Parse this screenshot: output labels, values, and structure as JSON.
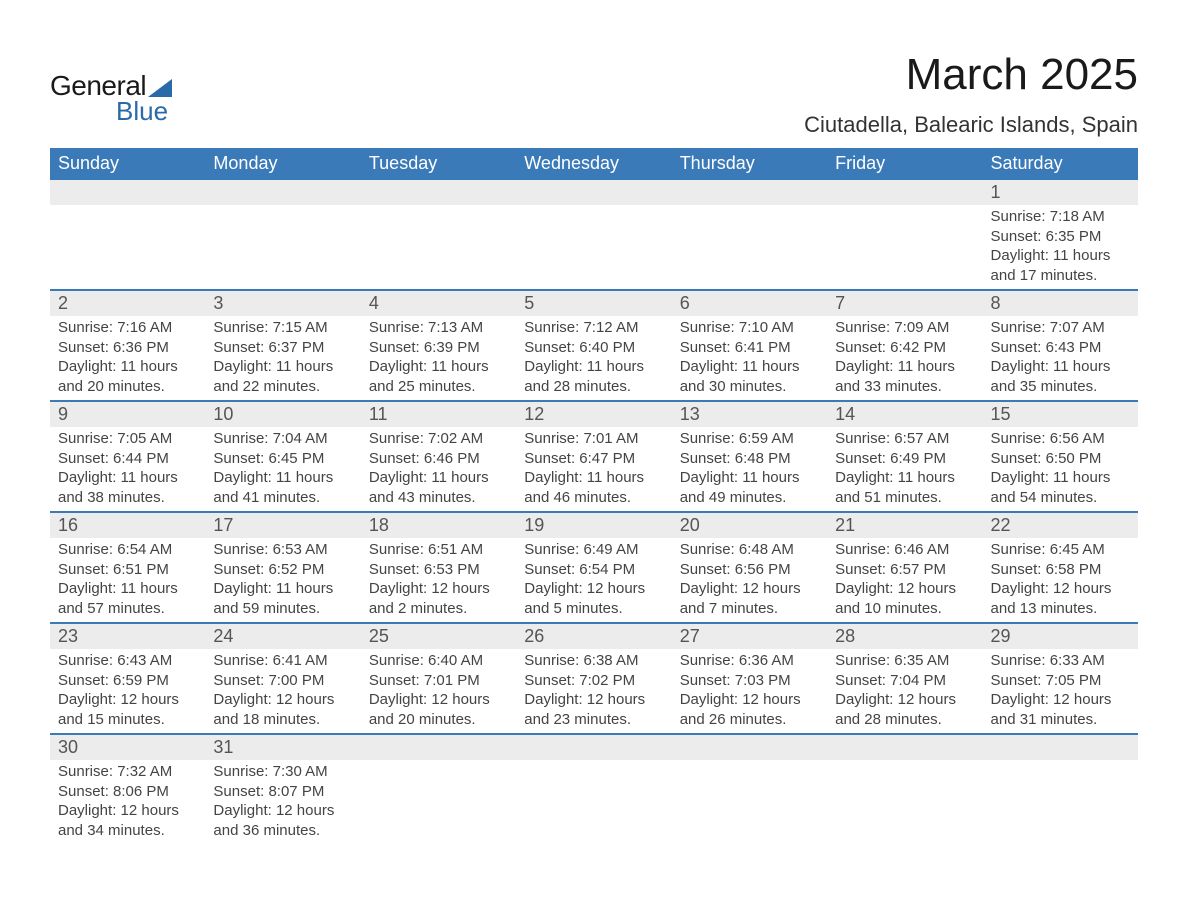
{
  "logo": {
    "text_left": "General",
    "text_right": "Blue"
  },
  "title": "March 2025",
  "location": "Ciutadella, Balearic Islands, Spain",
  "colors": {
    "header_bg": "#3a7ab8",
    "header_text": "#ffffff",
    "daynum_bg": "#ececec",
    "row_divider": "#3a7ab8",
    "brand_blue": "#2a6aa8",
    "body_text": "#444444"
  },
  "weekday_labels": [
    "Sunday",
    "Monday",
    "Tuesday",
    "Wednesday",
    "Thursday",
    "Friday",
    "Saturday"
  ],
  "weeks": [
    [
      {
        "empty": true
      },
      {
        "empty": true
      },
      {
        "empty": true
      },
      {
        "empty": true
      },
      {
        "empty": true
      },
      {
        "empty": true
      },
      {
        "num": "1",
        "sunrise": "Sunrise: 7:18 AM",
        "sunset": "Sunset: 6:35 PM",
        "day1": "Daylight: 11 hours",
        "day2": "and 17 minutes."
      }
    ],
    [
      {
        "num": "2",
        "sunrise": "Sunrise: 7:16 AM",
        "sunset": "Sunset: 6:36 PM",
        "day1": "Daylight: 11 hours",
        "day2": "and 20 minutes."
      },
      {
        "num": "3",
        "sunrise": "Sunrise: 7:15 AM",
        "sunset": "Sunset: 6:37 PM",
        "day1": "Daylight: 11 hours",
        "day2": "and 22 minutes."
      },
      {
        "num": "4",
        "sunrise": "Sunrise: 7:13 AM",
        "sunset": "Sunset: 6:39 PM",
        "day1": "Daylight: 11 hours",
        "day2": "and 25 minutes."
      },
      {
        "num": "5",
        "sunrise": "Sunrise: 7:12 AM",
        "sunset": "Sunset: 6:40 PM",
        "day1": "Daylight: 11 hours",
        "day2": "and 28 minutes."
      },
      {
        "num": "6",
        "sunrise": "Sunrise: 7:10 AM",
        "sunset": "Sunset: 6:41 PM",
        "day1": "Daylight: 11 hours",
        "day2": "and 30 minutes."
      },
      {
        "num": "7",
        "sunrise": "Sunrise: 7:09 AM",
        "sunset": "Sunset: 6:42 PM",
        "day1": "Daylight: 11 hours",
        "day2": "and 33 minutes."
      },
      {
        "num": "8",
        "sunrise": "Sunrise: 7:07 AM",
        "sunset": "Sunset: 6:43 PM",
        "day1": "Daylight: 11 hours",
        "day2": "and 35 minutes."
      }
    ],
    [
      {
        "num": "9",
        "sunrise": "Sunrise: 7:05 AM",
        "sunset": "Sunset: 6:44 PM",
        "day1": "Daylight: 11 hours",
        "day2": "and 38 minutes."
      },
      {
        "num": "10",
        "sunrise": "Sunrise: 7:04 AM",
        "sunset": "Sunset: 6:45 PM",
        "day1": "Daylight: 11 hours",
        "day2": "and 41 minutes."
      },
      {
        "num": "11",
        "sunrise": "Sunrise: 7:02 AM",
        "sunset": "Sunset: 6:46 PM",
        "day1": "Daylight: 11 hours",
        "day2": "and 43 minutes."
      },
      {
        "num": "12",
        "sunrise": "Sunrise: 7:01 AM",
        "sunset": "Sunset: 6:47 PM",
        "day1": "Daylight: 11 hours",
        "day2": "and 46 minutes."
      },
      {
        "num": "13",
        "sunrise": "Sunrise: 6:59 AM",
        "sunset": "Sunset: 6:48 PM",
        "day1": "Daylight: 11 hours",
        "day2": "and 49 minutes."
      },
      {
        "num": "14",
        "sunrise": "Sunrise: 6:57 AM",
        "sunset": "Sunset: 6:49 PM",
        "day1": "Daylight: 11 hours",
        "day2": "and 51 minutes."
      },
      {
        "num": "15",
        "sunrise": "Sunrise: 6:56 AM",
        "sunset": "Sunset: 6:50 PM",
        "day1": "Daylight: 11 hours",
        "day2": "and 54 minutes."
      }
    ],
    [
      {
        "num": "16",
        "sunrise": "Sunrise: 6:54 AM",
        "sunset": "Sunset: 6:51 PM",
        "day1": "Daylight: 11 hours",
        "day2": "and 57 minutes."
      },
      {
        "num": "17",
        "sunrise": "Sunrise: 6:53 AM",
        "sunset": "Sunset: 6:52 PM",
        "day1": "Daylight: 11 hours",
        "day2": "and 59 minutes."
      },
      {
        "num": "18",
        "sunrise": "Sunrise: 6:51 AM",
        "sunset": "Sunset: 6:53 PM",
        "day1": "Daylight: 12 hours",
        "day2": "and 2 minutes."
      },
      {
        "num": "19",
        "sunrise": "Sunrise: 6:49 AM",
        "sunset": "Sunset: 6:54 PM",
        "day1": "Daylight: 12 hours",
        "day2": "and 5 minutes."
      },
      {
        "num": "20",
        "sunrise": "Sunrise: 6:48 AM",
        "sunset": "Sunset: 6:56 PM",
        "day1": "Daylight: 12 hours",
        "day2": "and 7 minutes."
      },
      {
        "num": "21",
        "sunrise": "Sunrise: 6:46 AM",
        "sunset": "Sunset: 6:57 PM",
        "day1": "Daylight: 12 hours",
        "day2": "and 10 minutes."
      },
      {
        "num": "22",
        "sunrise": "Sunrise: 6:45 AM",
        "sunset": "Sunset: 6:58 PM",
        "day1": "Daylight: 12 hours",
        "day2": "and 13 minutes."
      }
    ],
    [
      {
        "num": "23",
        "sunrise": "Sunrise: 6:43 AM",
        "sunset": "Sunset: 6:59 PM",
        "day1": "Daylight: 12 hours",
        "day2": "and 15 minutes."
      },
      {
        "num": "24",
        "sunrise": "Sunrise: 6:41 AM",
        "sunset": "Sunset: 7:00 PM",
        "day1": "Daylight: 12 hours",
        "day2": "and 18 minutes."
      },
      {
        "num": "25",
        "sunrise": "Sunrise: 6:40 AM",
        "sunset": "Sunset: 7:01 PM",
        "day1": "Daylight: 12 hours",
        "day2": "and 20 minutes."
      },
      {
        "num": "26",
        "sunrise": "Sunrise: 6:38 AM",
        "sunset": "Sunset: 7:02 PM",
        "day1": "Daylight: 12 hours",
        "day2": "and 23 minutes."
      },
      {
        "num": "27",
        "sunrise": "Sunrise: 6:36 AM",
        "sunset": "Sunset: 7:03 PM",
        "day1": "Daylight: 12 hours",
        "day2": "and 26 minutes."
      },
      {
        "num": "28",
        "sunrise": "Sunrise: 6:35 AM",
        "sunset": "Sunset: 7:04 PM",
        "day1": "Daylight: 12 hours",
        "day2": "and 28 minutes."
      },
      {
        "num": "29",
        "sunrise": "Sunrise: 6:33 AM",
        "sunset": "Sunset: 7:05 PM",
        "day1": "Daylight: 12 hours",
        "day2": "and 31 minutes."
      }
    ],
    [
      {
        "num": "30",
        "sunrise": "Sunrise: 7:32 AM",
        "sunset": "Sunset: 8:06 PM",
        "day1": "Daylight: 12 hours",
        "day2": "and 34 minutes."
      },
      {
        "num": "31",
        "sunrise": "Sunrise: 7:30 AM",
        "sunset": "Sunset: 8:07 PM",
        "day1": "Daylight: 12 hours",
        "day2": "and 36 minutes."
      },
      {
        "empty": true
      },
      {
        "empty": true
      },
      {
        "empty": true
      },
      {
        "empty": true
      },
      {
        "empty": true
      }
    ]
  ]
}
